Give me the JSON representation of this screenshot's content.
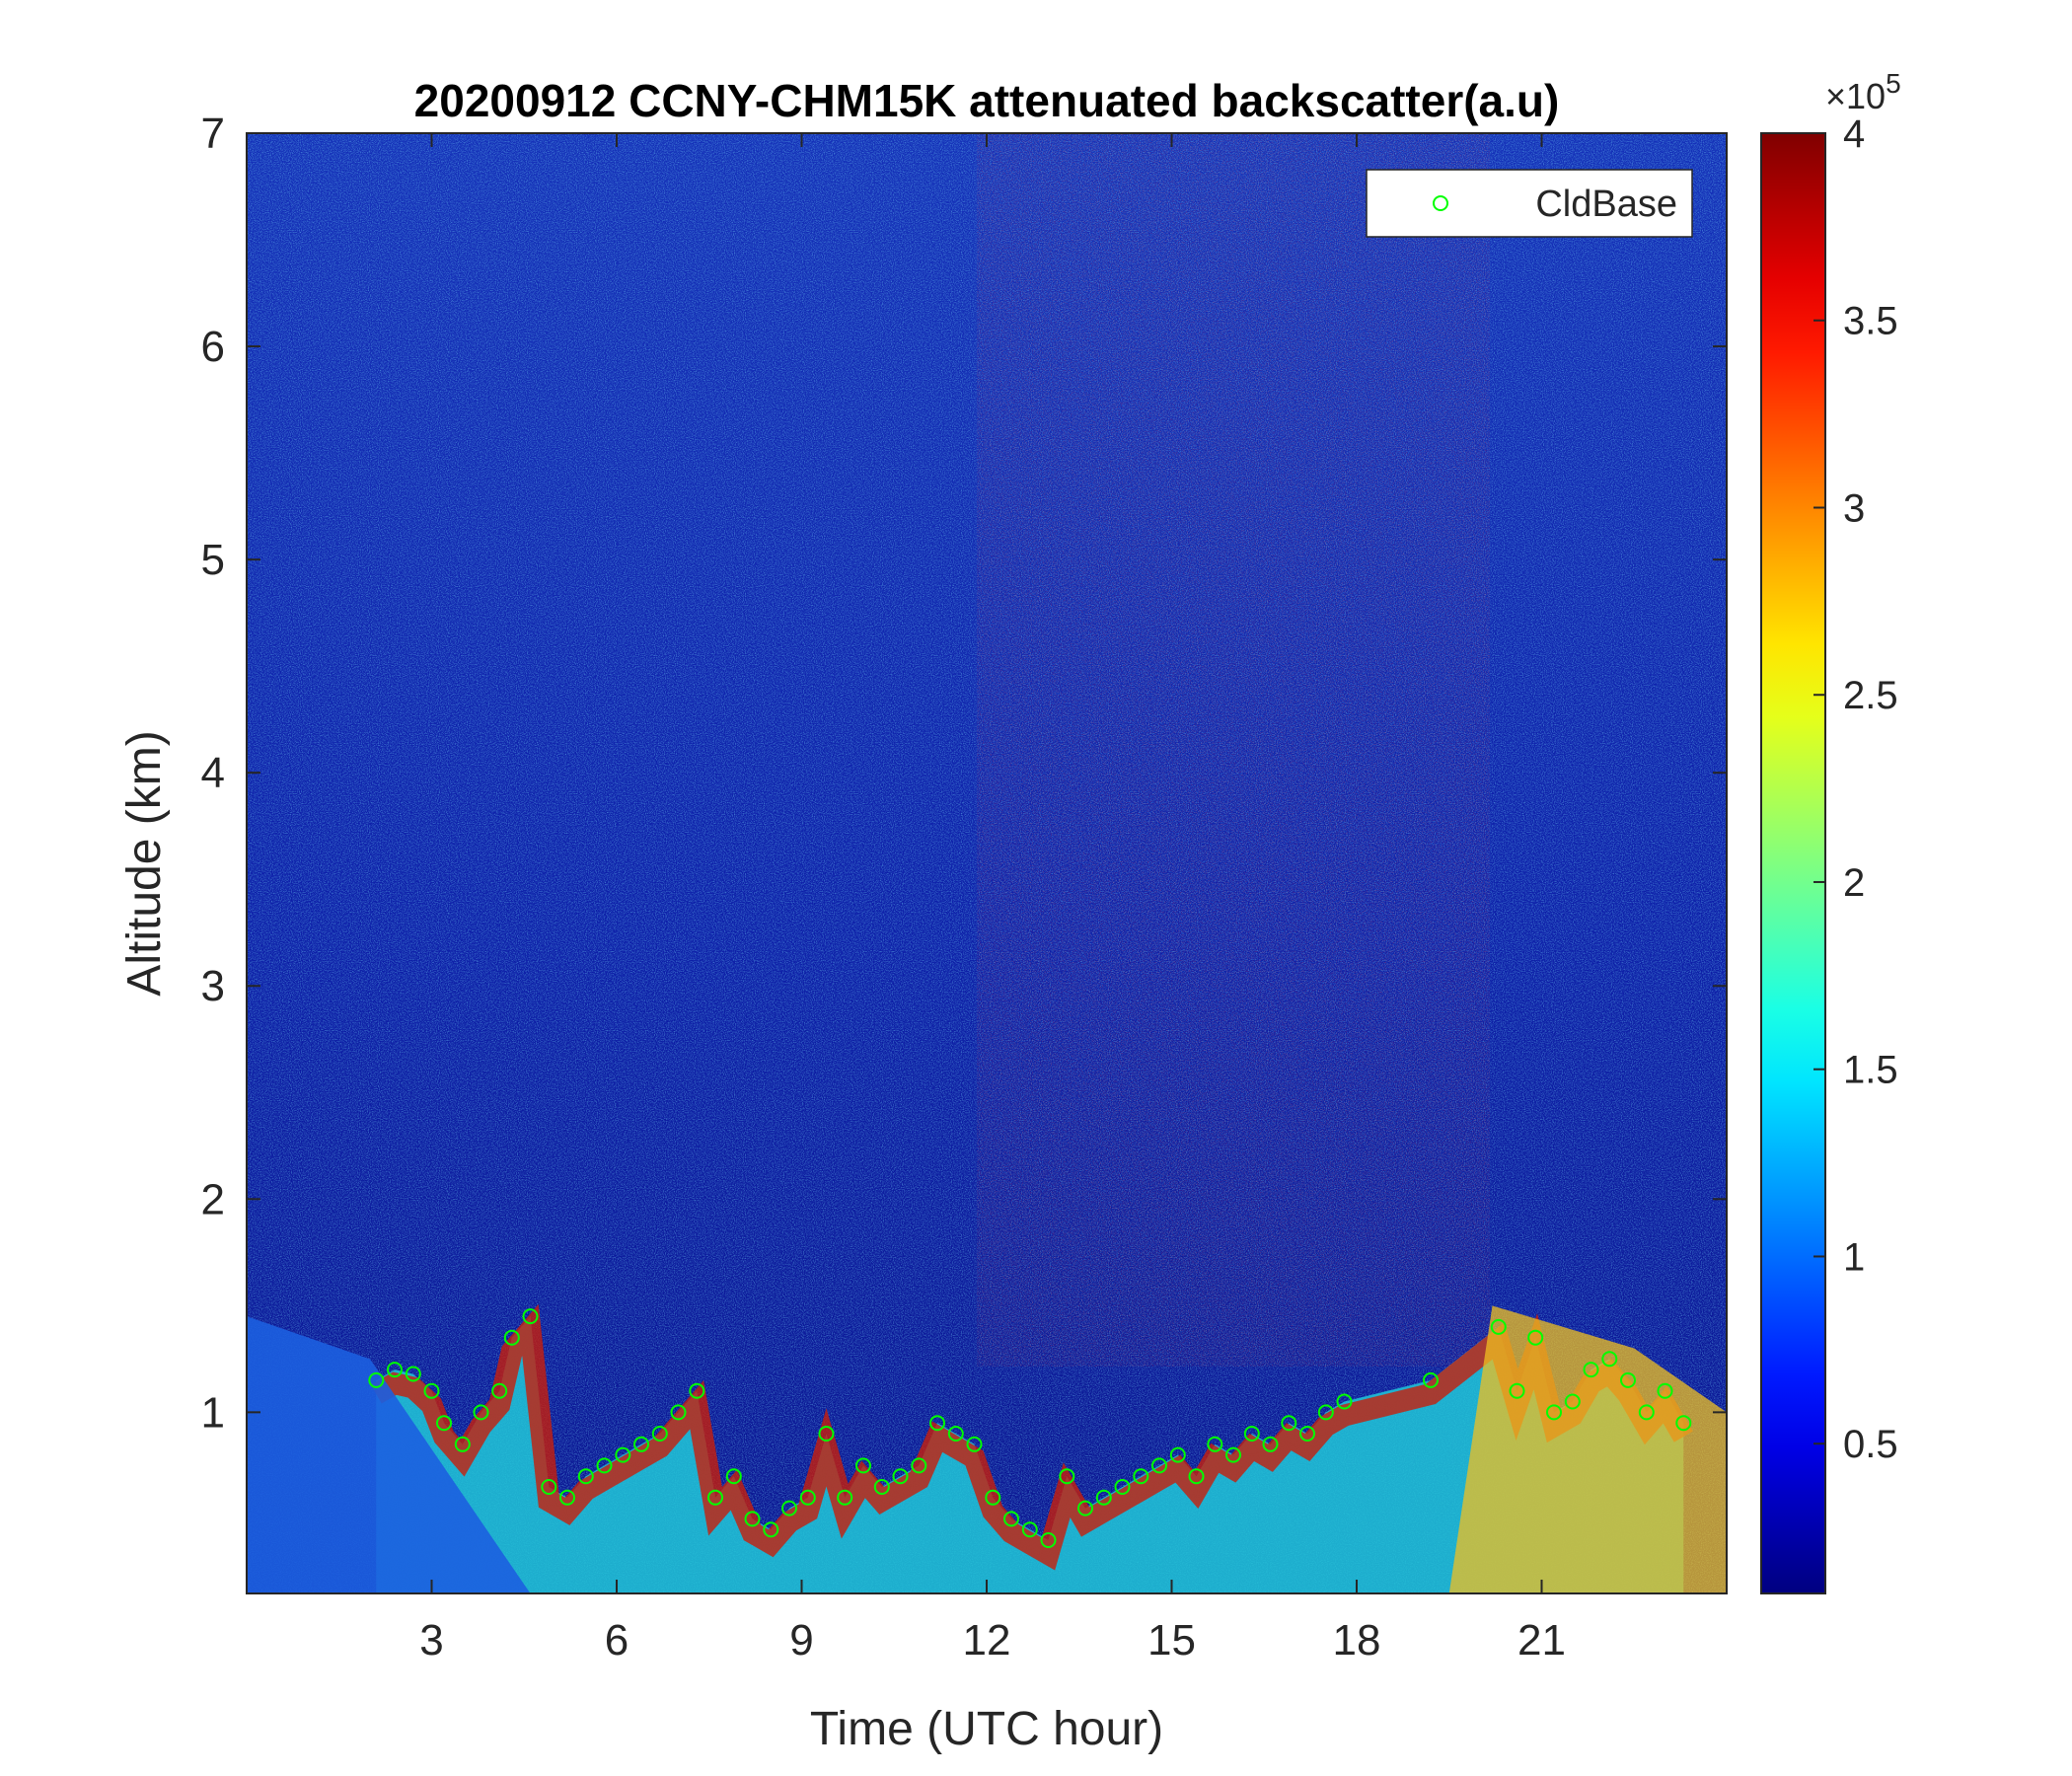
{
  "chart_data": {
    "type": "heatmap",
    "title": "20200912 CCNY-CHM15K attenuated backscatter(a.u)",
    "xlabel": "Time (UTC hour)",
    "ylabel": "Altitude (km)",
    "xlim": [
      0,
      24
    ],
    "ylim": [
      0.15,
      7
    ],
    "xticks": [
      3,
      6,
      9,
      12,
      15,
      18,
      21
    ],
    "yticks": [
      1,
      2,
      3,
      4,
      5,
      6,
      7
    ],
    "colorbar": {
      "colormap": "jet",
      "range": [
        0.1,
        4
      ],
      "ticks": [
        0.5,
        1,
        1.5,
        2,
        2.5,
        3,
        3.5,
        4
      ],
      "exponent_label": "×10",
      "exponent_power": "5"
    },
    "legend": {
      "placement": "top-right",
      "entries": [
        "CldBase"
      ]
    },
    "series": [
      {
        "name": "CldBase",
        "marker": "circle",
        "color": "#00ff00",
        "x": [
          2.1,
          2.4,
          2.7,
          3.0,
          3.2,
          3.5,
          3.8,
          4.1,
          4.3,
          4.6,
          4.9,
          5.2,
          5.5,
          5.8,
          6.1,
          6.4,
          6.7,
          7.0,
          7.3,
          7.6,
          7.9,
          8.2,
          8.5,
          8.8,
          9.1,
          9.4,
          9.7,
          10.0,
          10.3,
          10.6,
          10.9,
          11.2,
          11.5,
          11.8,
          12.1,
          12.4,
          12.7,
          13.0,
          13.3,
          13.6,
          13.9,
          14.2,
          14.5,
          14.8,
          15.1,
          15.4,
          15.7,
          16.0,
          16.3,
          16.6,
          16.9,
          17.2,
          17.5,
          17.8,
          19.2,
          20.3,
          20.6,
          20.9,
          21.2,
          21.5,
          21.8,
          22.1,
          22.4,
          22.7,
          23.0,
          23.3
        ],
        "y": [
          1.15,
          1.2,
          1.18,
          1.1,
          0.95,
          0.85,
          1.0,
          1.1,
          1.35,
          1.45,
          0.65,
          0.6,
          0.7,
          0.75,
          0.8,
          0.85,
          0.9,
          1.0,
          1.1,
          0.6,
          0.7,
          0.5,
          0.45,
          0.55,
          0.6,
          0.9,
          0.6,
          0.75,
          0.65,
          0.7,
          0.75,
          0.95,
          0.9,
          0.85,
          0.6,
          0.5,
          0.45,
          0.4,
          0.7,
          0.55,
          0.6,
          0.65,
          0.7,
          0.75,
          0.8,
          0.7,
          0.85,
          0.8,
          0.9,
          0.85,
          0.95,
          0.9,
          1.0,
          1.05,
          1.15,
          1.4,
          1.1,
          1.35,
          1.0,
          1.05,
          1.2,
          1.25,
          1.15,
          1.0,
          1.1,
          0.95
        ]
      }
    ]
  }
}
